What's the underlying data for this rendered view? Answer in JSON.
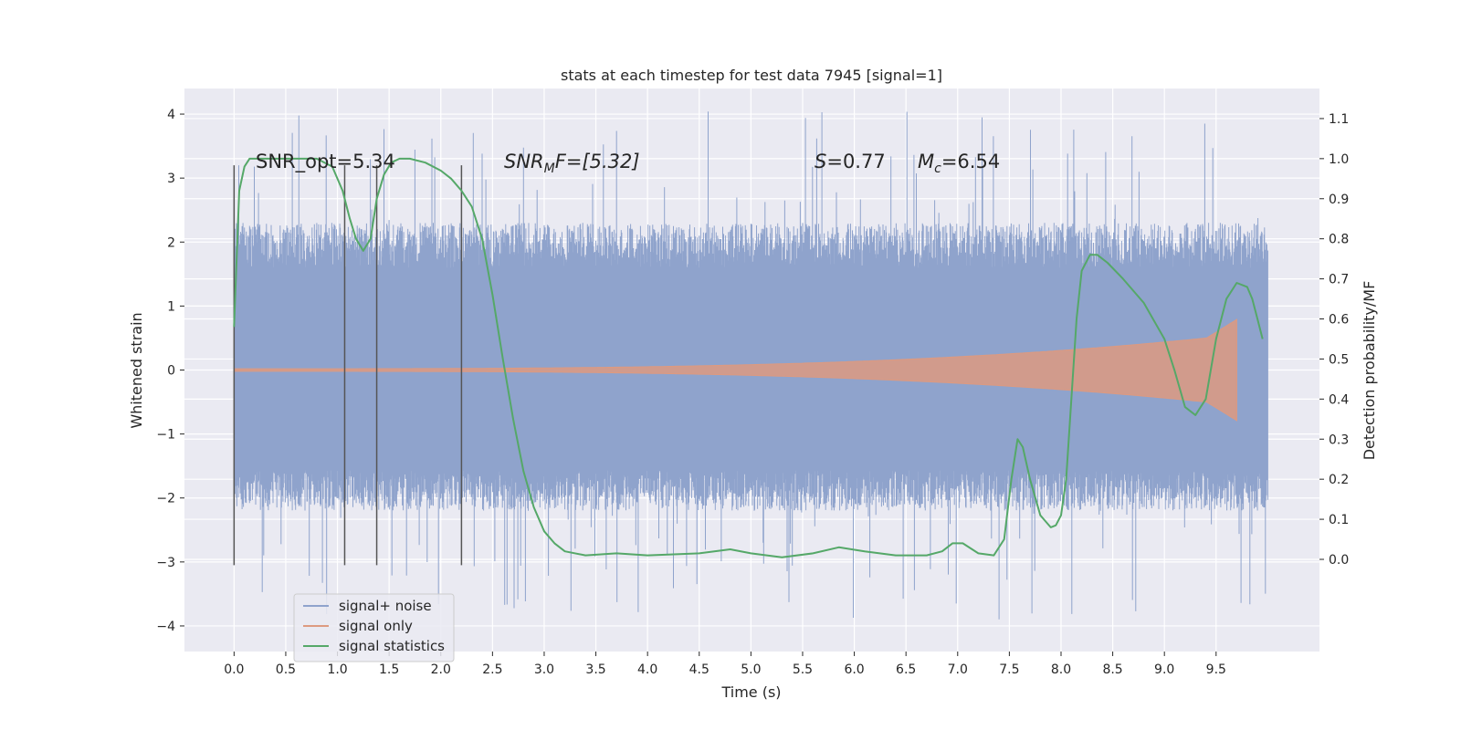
{
  "chart_data": {
    "type": "line",
    "title": "stats at each timestep for test data 7945 [signal=1]",
    "xlabel": "Time (s)",
    "ylabel": "Whitened strain",
    "y2label": "Detection probability/MF",
    "xlim": [
      -0.48,
      10.5
    ],
    "ylim": [
      -4.4,
      4.4
    ],
    "y2lim": [
      -0.23,
      1.175
    ],
    "xticks": [
      "0.0",
      "0.5",
      "1.0",
      "1.5",
      "2.0",
      "2.5",
      "3.0",
      "3.5",
      "4.0",
      "4.5",
      "5.0",
      "5.5",
      "6.0",
      "6.5",
      "7.0",
      "7.5",
      "8.0",
      "8.5",
      "9.0",
      "9.5"
    ],
    "yticks": [
      "4",
      "3",
      "2",
      "1",
      "0",
      "−1",
      "−2",
      "−3",
      "−4"
    ],
    "y2ticks": [
      "1.1",
      "1.0",
      "0.9",
      "0.8",
      "0.7",
      "0.6",
      "0.5",
      "0.4",
      "0.3",
      "0.2",
      "0.1",
      "0.0"
    ],
    "grid": true,
    "legend_position": "lower-left",
    "annotations": [
      {
        "x": 0.2,
        "label": "SNR_opt=5.34"
      },
      {
        "x": 2.6,
        "label": "SNR_MF=[5.32]"
      },
      {
        "x": 5.6,
        "label": "S=0.77"
      },
      {
        "x": 6.6,
        "label": "M_c=6.54"
      }
    ],
    "annotation_text": {
      "snr_opt": "SNR_opt=5.34",
      "snr_mf_a": "SNR",
      "snr_mf_sub": "M",
      "snr_mf_b": "F=[5.32]",
      "s_var": "S",
      "s_val": "=0.77",
      "mc_var": "M",
      "mc_sub": "c",
      "mc_val": "=6.54"
    },
    "vlines": [
      0.0,
      1.07,
      1.38,
      2.2
    ],
    "noise": {
      "xrange": [
        0.0,
        10.0
      ],
      "core_band": [
        -1.3,
        1.3
      ],
      "typical_peak": [
        -2.2,
        2.3
      ],
      "extreme_peak": [
        -3.9,
        4.05
      ]
    },
    "signal_only": {
      "xrange": [
        0.0,
        9.7
      ],
      "amplitude_start": 0.02,
      "amplitude_end": 0.55
    },
    "series": [
      {
        "name": "signal+ noise",
        "color": "#8fa3cc"
      },
      {
        "name": "signal only",
        "color": "#dd9a80"
      },
      {
        "name": "signal statistics",
        "color": "#55a868",
        "x": [
          0.0,
          0.05,
          0.1,
          0.15,
          0.2,
          0.3,
          0.5,
          0.8,
          0.95,
          1.05,
          1.12,
          1.18,
          1.25,
          1.32,
          1.38,
          1.45,
          1.52,
          1.6,
          1.7,
          1.85,
          2.0,
          2.1,
          2.2,
          2.3,
          2.4,
          2.5,
          2.6,
          2.7,
          2.8,
          2.9,
          3.0,
          3.1,
          3.2,
          3.4,
          3.7,
          4.0,
          4.5,
          4.8,
          5.0,
          5.3,
          5.6,
          5.85,
          6.1,
          6.4,
          6.7,
          6.85,
          6.95,
          7.05,
          7.2,
          7.35,
          7.45,
          7.52,
          7.58,
          7.63,
          7.7,
          7.8,
          7.9,
          7.95,
          8.0,
          8.05,
          8.1,
          8.15,
          8.2,
          8.28,
          8.35,
          8.45,
          8.6,
          8.8,
          9.0,
          9.1,
          9.2,
          9.3,
          9.4,
          9.5,
          9.6,
          9.7,
          9.8,
          9.85,
          9.9,
          9.95
        ],
        "values": [
          0.58,
          0.92,
          0.98,
          1.0,
          1.0,
          1.0,
          1.0,
          1.0,
          0.98,
          0.92,
          0.85,
          0.8,
          0.77,
          0.8,
          0.9,
          0.96,
          0.99,
          1.0,
          1.0,
          0.99,
          0.97,
          0.95,
          0.92,
          0.88,
          0.8,
          0.66,
          0.5,
          0.35,
          0.22,
          0.13,
          0.07,
          0.04,
          0.02,
          0.01,
          0.015,
          0.01,
          0.015,
          0.025,
          0.015,
          0.005,
          0.015,
          0.03,
          0.02,
          0.01,
          0.01,
          0.02,
          0.04,
          0.04,
          0.015,
          0.01,
          0.05,
          0.2,
          0.3,
          0.28,
          0.2,
          0.11,
          0.08,
          0.085,
          0.11,
          0.2,
          0.4,
          0.6,
          0.72,
          0.76,
          0.76,
          0.74,
          0.7,
          0.64,
          0.55,
          0.47,
          0.38,
          0.36,
          0.4,
          0.55,
          0.65,
          0.69,
          0.68,
          0.65,
          0.6,
          0.55
        ]
      }
    ]
  }
}
